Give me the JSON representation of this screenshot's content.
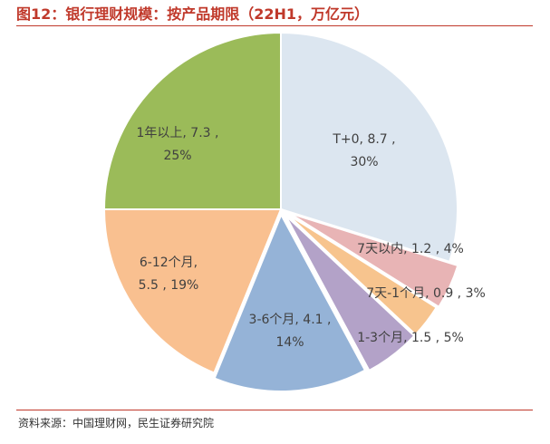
{
  "title": "图12：银行理财规模：按产品期限（22H1，万亿元）",
  "source": "资料来源：中国理财网，民生证券研究院",
  "chart_data": {
    "type": "pie",
    "start_angle_deg": 0,
    "direction": "clockwise",
    "slices": [
      {
        "category": "T+0",
        "value": 8.7,
        "pct": "30%",
        "color": "#dce6f0",
        "label_lines": [
          "T+0, 8.7 ,",
          "30%"
        ]
      },
      {
        "category": "7天以内",
        "value": 1.2,
        "pct": "4%",
        "color": "#e8b4b5",
        "label_lines": [
          "7天以内, 1.2 , 4%"
        ]
      },
      {
        "category": "7天-1个月",
        "value": 0.9,
        "pct": "3%",
        "color": "#f7c48e",
        "label_lines": [
          "7天-1个月, 0.9 , 3%"
        ]
      },
      {
        "category": "1-3个月",
        "value": 1.5,
        "pct": "5%",
        "color": "#b3a2c8",
        "label_lines": [
          "1-3个月, 1.5 , 5%"
        ]
      },
      {
        "category": "3-6个月",
        "value": 4.1,
        "pct": "14%",
        "color": "#95b3d7",
        "label_lines": [
          "3-6个月, 4.1 ,",
          "14%"
        ]
      },
      {
        "category": "6-12个月",
        "value": 5.5,
        "pct": "19%",
        "color": "#f9c090",
        "label_lines": [
          "6-12个月,",
          "5.5 , 19%"
        ]
      },
      {
        "category": "1年以上",
        "value": 7.3,
        "pct": "25%",
        "color": "#9bbb59",
        "label_lines": [
          "1年以上, 7.3 ,",
          "25%"
        ]
      }
    ]
  }
}
